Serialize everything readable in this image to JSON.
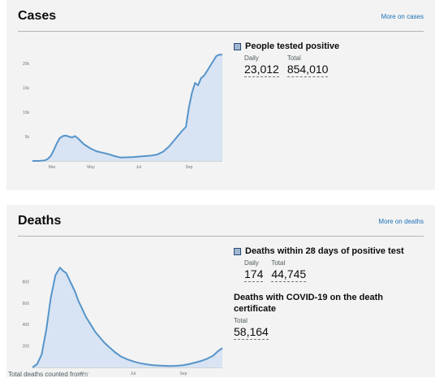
{
  "cases": {
    "title": "Cases",
    "more_link": "More on cases",
    "metric": {
      "title": "People tested positive",
      "daily_label": "Daily",
      "daily_value": "23,012",
      "total_label": "Total",
      "total_value": "854,010"
    }
  },
  "deaths": {
    "title": "Deaths",
    "more_link": "More on deaths",
    "metric": {
      "title": "Deaths within 28 days of positive test",
      "daily_label": "Daily",
      "daily_value": "174",
      "total_label": "Total",
      "total_value": "44,745"
    },
    "certificate_metric": {
      "title": "Deaths with COVID-19 on the death certificate",
      "total_label": "Total",
      "total_value": "58,164"
    }
  },
  "footnote": "Total deaths counted from...",
  "colors": {
    "line": "#5694ca",
    "fill": "#d8e4f3",
    "link": "#1d70b8"
  },
  "chart_data": [
    {
      "type": "area",
      "x_ticks": [
        "Mar",
        "May",
        "Jul",
        "Sep"
      ],
      "y_ticks": [
        "20k",
        "15k",
        "10k",
        "5k"
      ],
      "ylim": [
        0,
        22000
      ],
      "x": [
        0,
        4,
        8,
        10,
        12,
        14,
        16,
        18,
        20,
        22,
        24,
        26,
        28,
        30,
        34,
        38,
        42,
        46,
        50,
        54,
        58,
        62,
        66,
        70,
        74,
        78,
        82,
        86,
        90,
        94,
        98,
        101,
        103,
        105,
        107,
        109,
        111,
        113,
        115,
        117,
        119,
        121,
        123,
        125
      ],
      "values": [
        0,
        0,
        100,
        400,
        1000,
        2200,
        3600,
        4700,
        5100,
        5200,
        5000,
        4800,
        5100,
        4600,
        3400,
        2600,
        2000,
        1700,
        1400,
        1000,
        700,
        750,
        800,
        900,
        1000,
        1100,
        1300,
        1900,
        3000,
        4500,
        6000,
        7000,
        11000,
        14000,
        16000,
        15500,
        17000,
        17500,
        18500,
        19500,
        20500,
        21500,
        21800,
        21800
      ],
      "grid": false
    },
    {
      "type": "area",
      "x_ticks": [
        "May",
        "Jul",
        "Sep"
      ],
      "y_ticks": [
        "800",
        "600",
        "400",
        "200"
      ],
      "ylim": [
        0,
        1000
      ],
      "x": [
        0,
        3,
        6,
        9,
        12,
        15,
        18,
        20,
        22,
        24,
        26,
        28,
        30,
        32,
        35,
        38,
        41,
        44,
        47,
        50,
        54,
        58,
        62,
        66,
        70,
        74,
        78,
        82,
        86,
        90,
        94,
        98,
        102,
        106,
        110,
        114,
        118,
        121,
        124
      ],
      "values": [
        0,
        30,
        120,
        350,
        650,
        860,
        930,
        900,
        880,
        820,
        760,
        700,
        620,
        560,
        470,
        400,
        330,
        280,
        230,
        190,
        140,
        100,
        75,
        55,
        40,
        30,
        22,
        18,
        15,
        14,
        15,
        20,
        30,
        45,
        60,
        80,
        110,
        150,
        180
      ],
      "grid": false
    }
  ]
}
